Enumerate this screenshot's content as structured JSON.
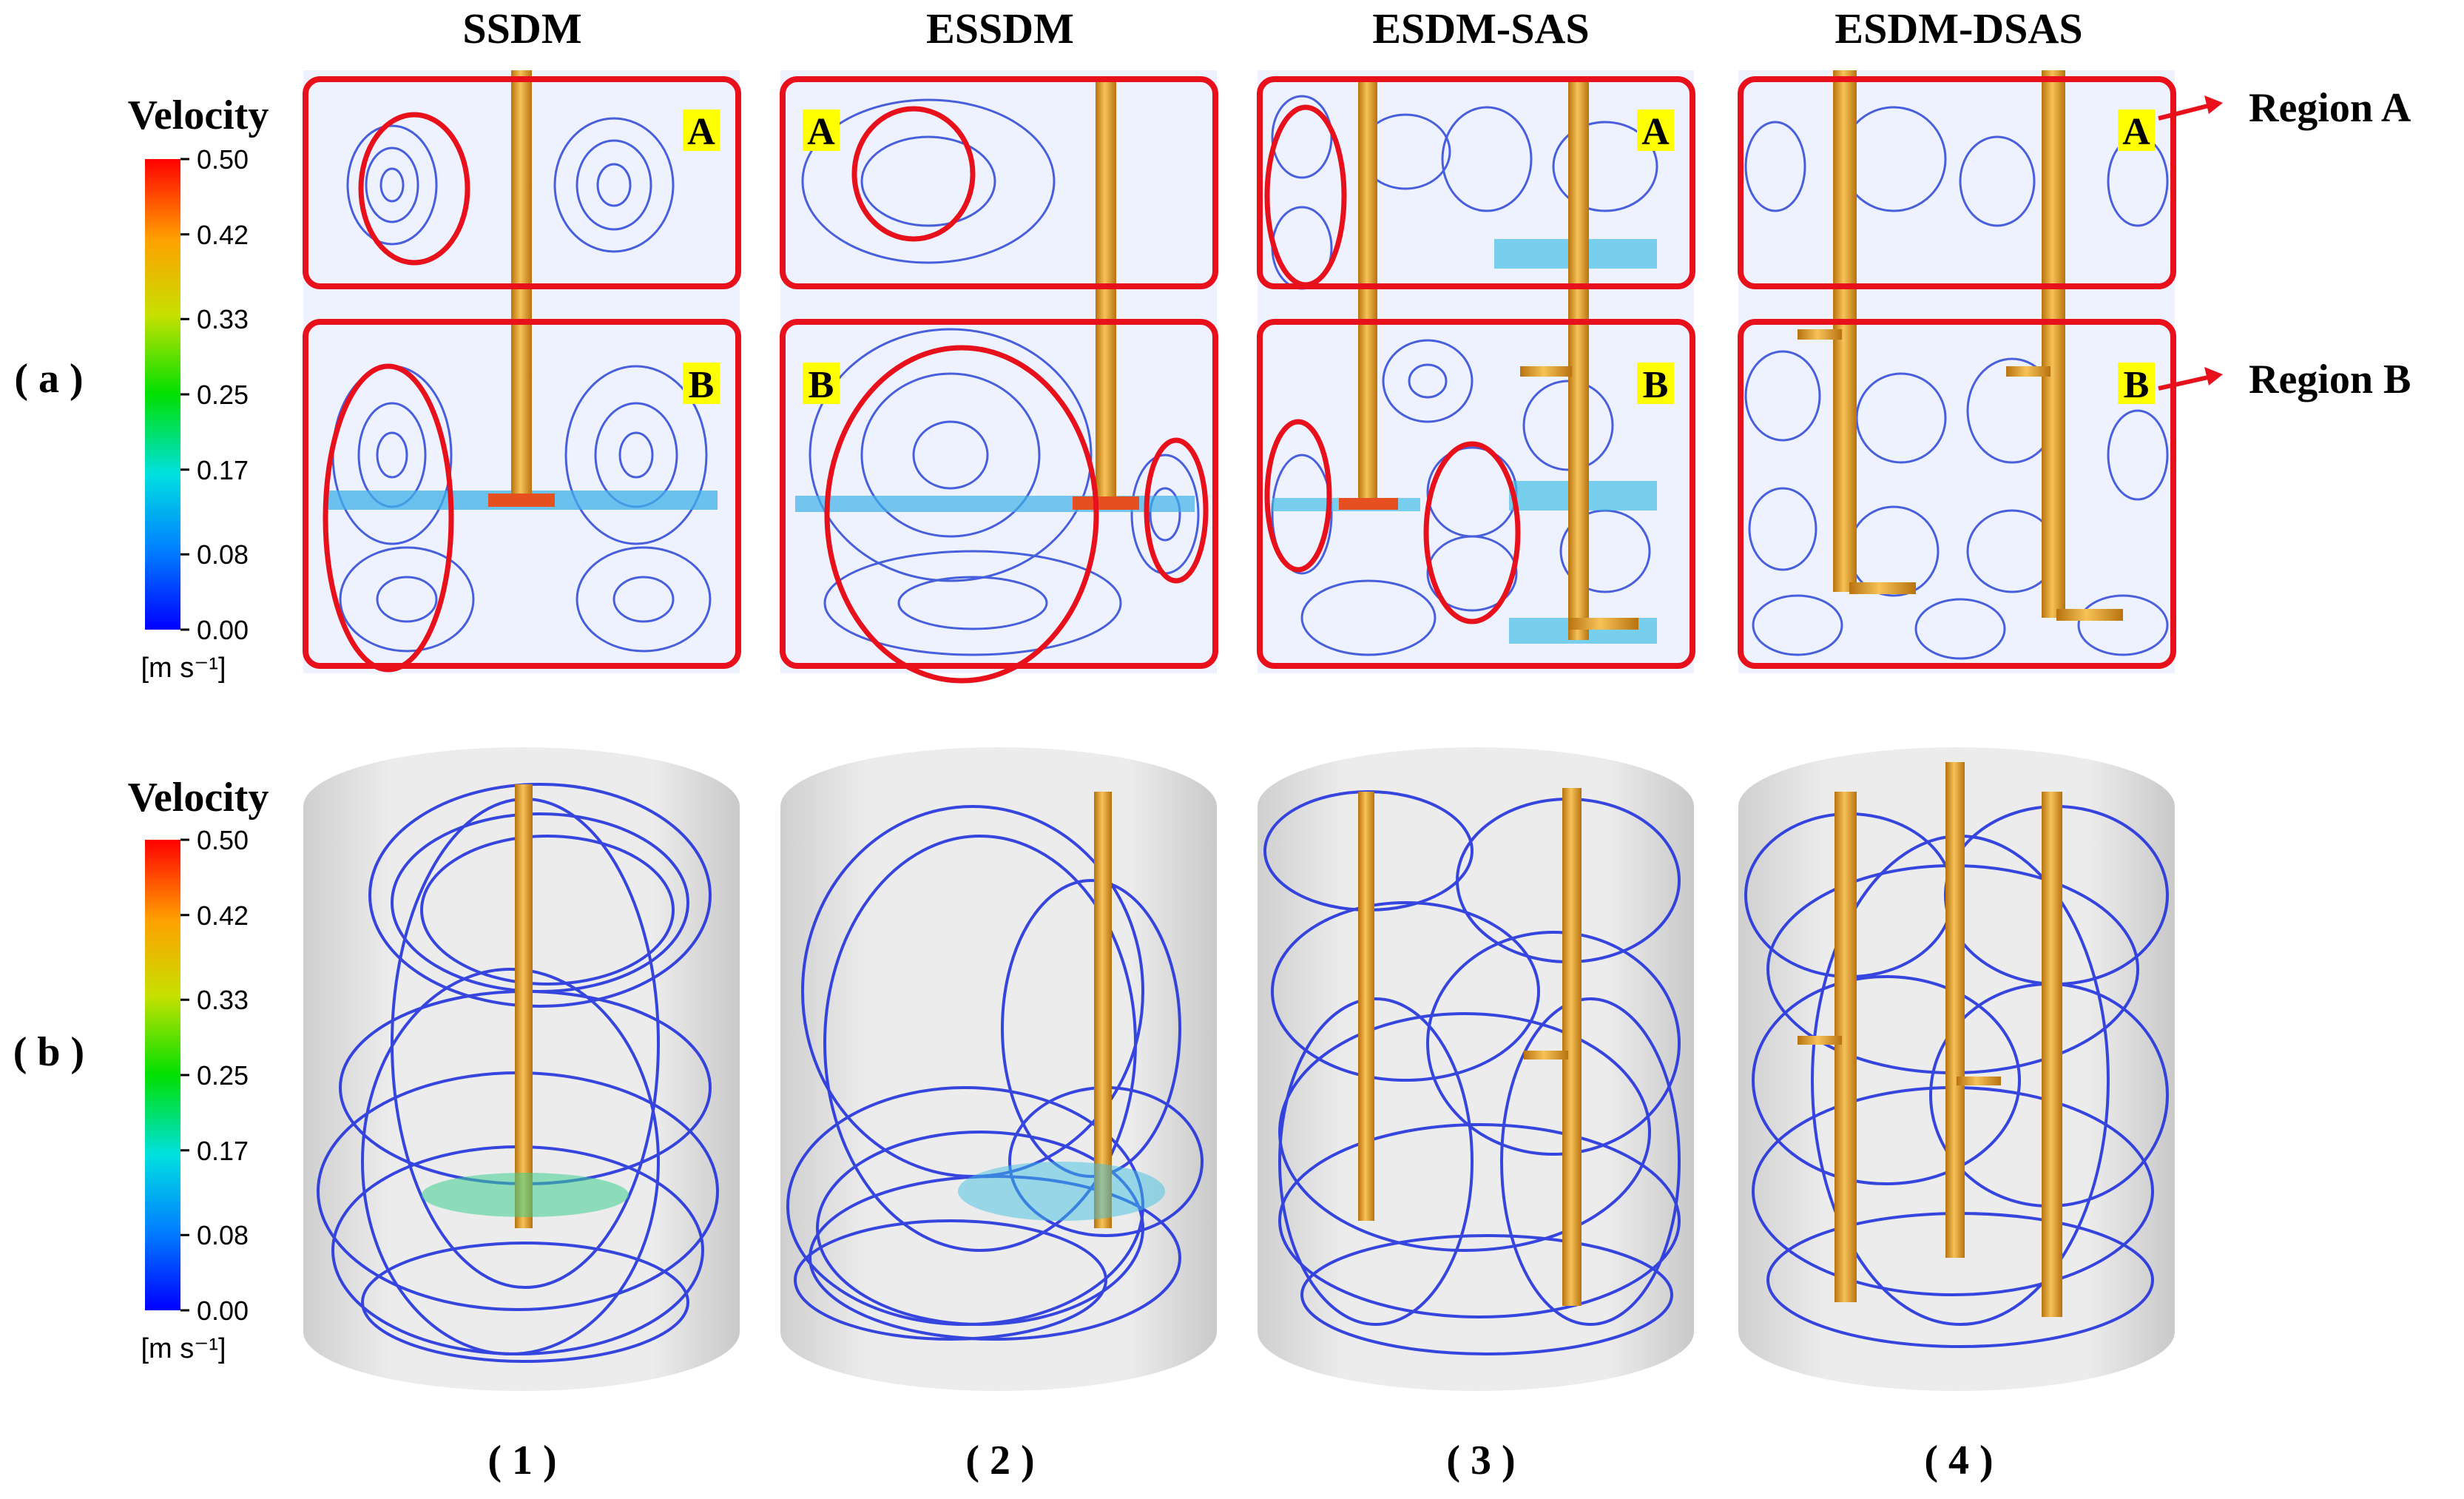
{
  "columns": [
    "SSDM",
    "ESSDM",
    "ESDM-SAS",
    "ESDM-DSAS"
  ],
  "row_labels": [
    "( a )",
    "( b )"
  ],
  "bottom_labels": [
    "( 1 )",
    "( 2 )",
    "( 3 )",
    "( 4 )"
  ],
  "region_labels": [
    "Region A",
    "Region B"
  ],
  "region_tags": [
    "A",
    "B"
  ],
  "colorbar": {
    "title": "Velocity",
    "ticks": [
      "0.50",
      "0.42",
      "0.33",
      "0.25",
      "0.17",
      "0.08",
      "0.00"
    ],
    "unit": "[m s⁻¹]",
    "min": 0.0,
    "max": 0.5
  },
  "colors": {
    "outline": "#e8101a",
    "tag_fill": "#ffff00",
    "shaft": "#e39b1f",
    "streamline": "#1f3fe0",
    "tank": "#e3e3e3"
  }
}
